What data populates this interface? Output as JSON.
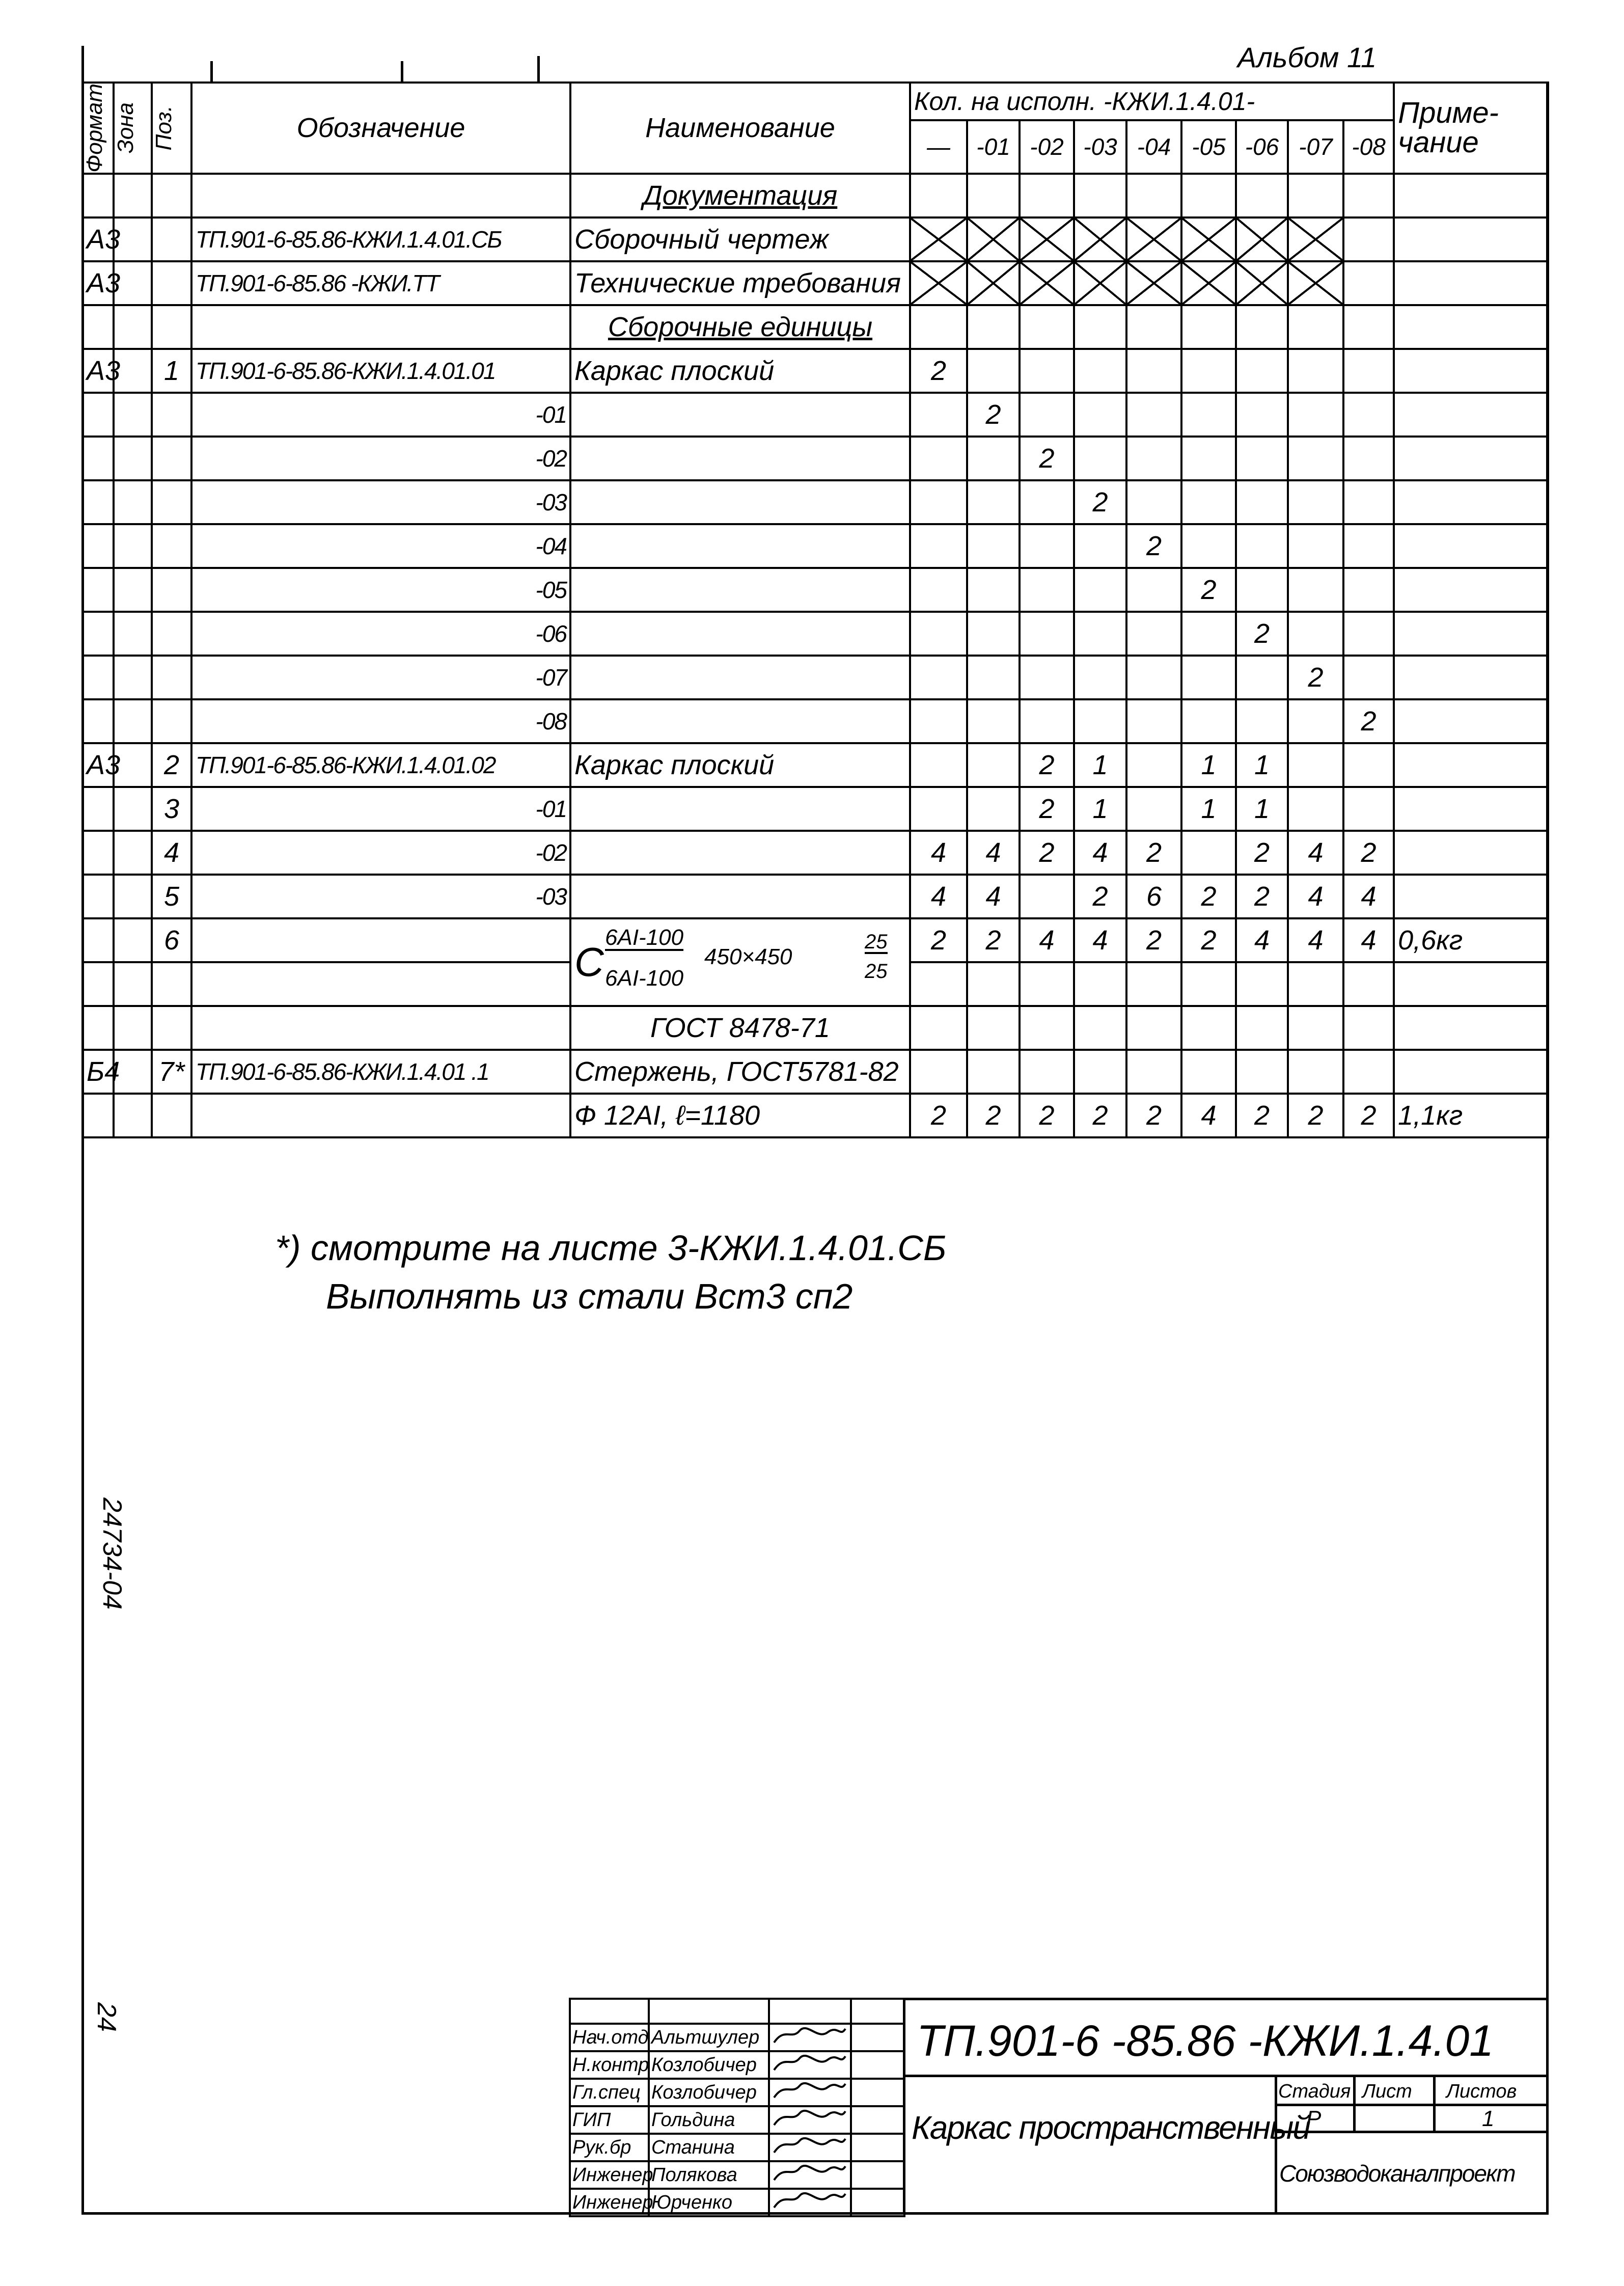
{
  "album_label": "Альбом 11",
  "margin": {
    "inventory": "24734-04",
    "page": "24"
  },
  "header": {
    "format": "Формат",
    "zone": "Зона",
    "pos": "Поз.",
    "designation": "Обозначение",
    "name": "Наименование",
    "qty_title": "Кол. на исполн. -КЖИ.1.4.01-",
    "qty_columns": [
      "—",
      "-01",
      "-02",
      "-03",
      "-04",
      "-05",
      "-06",
      "-07",
      "-08"
    ],
    "note": "Приме-чание"
  },
  "rows": [
    {
      "type": "section",
      "name": "Документация"
    },
    {
      "format": "А3",
      "designation": "ТП.901-6-85.86-КЖИ.1.4.01.СБ",
      "name": "Сборочный чертеж",
      "crossed": true
    },
    {
      "format": "А3",
      "designation": "ТП.901-6-85.86      -КЖИ.ТТ",
      "name": "Технические требования",
      "crossed": true
    },
    {
      "type": "section",
      "name": "Сборочные единицы"
    },
    {
      "format": "А3",
      "pos": "1",
      "designation": "ТП.901-6-85.86-КЖИ.1.4.01.01",
      "name": "Каркас плоский",
      "qty": [
        "2",
        "",
        "",
        "",
        "",
        "",
        "",
        "",
        ""
      ]
    },
    {
      "designation": "-01",
      "align": "right",
      "qty": [
        "",
        "2",
        "",
        "",
        "",
        "",
        "",
        "",
        ""
      ]
    },
    {
      "designation": "-02",
      "align": "right",
      "qty": [
        "",
        "",
        "2",
        "",
        "",
        "",
        "",
        "",
        ""
      ]
    },
    {
      "designation": "-03",
      "align": "right",
      "qty": [
        "",
        "",
        "",
        "2",
        "",
        "",
        "",
        "",
        ""
      ]
    },
    {
      "designation": "-04",
      "align": "right",
      "qty": [
        "",
        "",
        "",
        "",
        "2",
        "",
        "",
        "",
        ""
      ]
    },
    {
      "designation": "-05",
      "align": "right",
      "qty": [
        "",
        "",
        "",
        "",
        "",
        "2",
        "",
        "",
        ""
      ]
    },
    {
      "designation": "-06",
      "align": "right",
      "qty": [
        "",
        "",
        "",
        "",
        "",
        "",
        "2",
        "",
        ""
      ]
    },
    {
      "designation": "-07",
      "align": "right",
      "qty": [
        "",
        "",
        "",
        "",
        "",
        "",
        "",
        "2",
        ""
      ]
    },
    {
      "designation": "-08",
      "align": "right",
      "qty": [
        "",
        "",
        "",
        "",
        "",
        "",
        "",
        "",
        "2"
      ]
    },
    {
      "format": "А3",
      "pos": "2",
      "designation": "ТП.901-6-85.86-КЖИ.1.4.01.02",
      "name": "Каркас плоский",
      "qty": [
        "",
        "",
        "2",
        "1",
        "",
        "1",
        "1",
        "",
        ""
      ]
    },
    {
      "pos": "3",
      "designation": "-01",
      "align": "right",
      "qty": [
        "",
        "",
        "2",
        "1",
        "",
        "1",
        "1",
        "",
        ""
      ]
    },
    {
      "pos": "4",
      "designation": "-02",
      "align": "right",
      "qty": [
        "4",
        "4",
        "2",
        "4",
        "2",
        "",
        "2",
        "4",
        "2"
      ]
    },
    {
      "pos": "5",
      "designation": "-03",
      "align": "right",
      "qty": [
        "4",
        "4",
        "",
        "2",
        "6",
        "2",
        "2",
        "4",
        "4"
      ]
    },
    {
      "type": "fraction",
      "pos": "6",
      "name_parts": {
        "prefix": "С",
        "top": "6АI-100",
        "middle": "450×450",
        "bottom": "6АI-100",
        "right_top": "25",
        "right_bottom": "25"
      },
      "qty": [
        "2",
        "2",
        "4",
        "4",
        "2",
        "2",
        "4",
        "4",
        "4"
      ],
      "note": "0,6кг"
    },
    {
      "type": "continuation"
    },
    {
      "name": "ГОСТ 8478-71",
      "name_align": "center"
    },
    {
      "format": "Б4",
      "pos": "7*",
      "designation": "ТП.901-6-85.86-КЖИ.1.4.01   .1",
      "name": "Стержень, ГОСТ5781-82"
    },
    {
      "name": "Ф 12АI, ℓ=1180",
      "qty": [
        "2",
        "2",
        "2",
        "2",
        "2",
        "4",
        "2",
        "2",
        "2"
      ],
      "note": "1,1кг"
    }
  ],
  "notes": {
    "line1": "*) смотрите на листе 3-КЖИ.1.4.01.СБ",
    "line2": "Выполнять из стали Вст3 сп2"
  },
  "title_block": {
    "designation": "ТП.901-6 -85.86 -КЖИ.1.4.01",
    "title": "Каркас пространственный",
    "stage_label": "Стадия",
    "sheet_label": "Лист",
    "sheets_label": "Листов",
    "stage": "Р",
    "sheet": "",
    "sheets": "1",
    "organization": "Союзводоканалпроект",
    "signatures": [
      {
        "role": "Нач.отд",
        "name": "Альтшулер"
      },
      {
        "role": "Н.контр",
        "name": "Козлобичер"
      },
      {
        "role": "Гл.спец",
        "name": "Козлобичер"
      },
      {
        "role": "ГИП",
        "name": "Гольдина"
      },
      {
        "role": "Рук.бр",
        "name": "Станина"
      },
      {
        "role": "Инженер",
        "name": "Полякова"
      },
      {
        "role": "Инженер",
        "name": "Юрченко"
      }
    ]
  }
}
